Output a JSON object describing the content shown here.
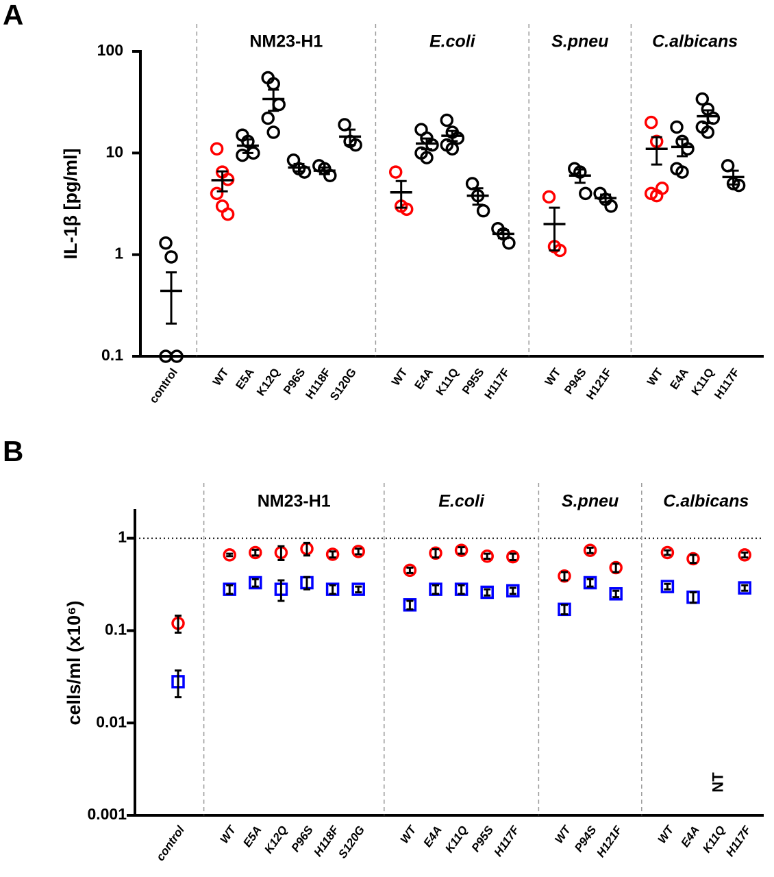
{
  "chart_data": [
    {
      "panel": "A",
      "type": "dot",
      "y_label": "IL-1β [pg/ml]",
      "log_scale": true,
      "ylim": [
        0.1,
        100
      ],
      "yticks": [
        0.1,
        1,
        10,
        100
      ],
      "point_color": "#000000",
      "highlight_color": "#ff0000",
      "groups": [
        {
          "categories": [
            {
              "label": "control",
              "values": [
                1.3,
                0.95,
                0.1,
                0.1
              ],
              "mean": 0.44,
              "error": 0.23
            }
          ]
        },
        {
          "name": "NM23-H1",
          "italic": false,
          "categories": [
            {
              "label": "WT",
              "highlighted": [
                11,
                6.5,
                5.5,
                4,
                3,
                2.5
              ],
              "mean": 5.4,
              "error": 1.2
            },
            {
              "label": "E5A",
              "values": [
                15,
                13,
                10,
                9.5
              ],
              "mean": 11.8,
              "error": 1.8
            },
            {
              "label": "K12Q",
              "values": [
                55,
                48,
                30,
                22,
                16
              ],
              "mean": 34,
              "error": 8
            },
            {
              "label": "P96S",
              "values": [
                8.5,
                7,
                6.5
              ],
              "mean": 7.2,
              "error": 0.6
            },
            {
              "label": "H118F",
              "values": [
                7.5,
                7,
                6
              ],
              "mean": 6.7,
              "error": 0.5
            },
            {
              "label": "S120G",
              "values": [
                19,
                13,
                12
              ],
              "mean": 14.5,
              "error": 2.5
            }
          ]
        },
        {
          "name": "E.coli",
          "italic": true,
          "categories": [
            {
              "label": "WT",
              "highlighted": [
                6.5,
                3,
                2.8
              ],
              "mean": 4.1,
              "error": 1.2
            },
            {
              "label": "E4A",
              "values": [
                17,
                14,
                12,
                10,
                9
              ],
              "mean": 12.4,
              "error": 1.5
            },
            {
              "label": "K11Q",
              "values": [
                21,
                16,
                14,
                12,
                11
              ],
              "mean": 14.8,
              "error": 1.7
            },
            {
              "label": "P95S",
              "values": [
                5,
                3.8,
                2.7
              ],
              "mean": 3.8,
              "error": 0.7
            },
            {
              "label": "H117F",
              "values": [
                1.8,
                1.6,
                1.3
              ],
              "mean": 1.6,
              "error": 0.15
            }
          ]
        },
        {
          "name": "S.pneu",
          "italic": true,
          "categories": [
            {
              "label": "WT",
              "highlighted": [
                3.7,
                1.2,
                1.1
              ],
              "mean": 2.0,
              "error": 0.9
            },
            {
              "label": "P94S",
              "values": [
                7,
                6.5,
                4
              ],
              "mean": 6,
              "error": 0.9
            },
            {
              "label": "H121F",
              "values": [
                4,
                3.5,
                3
              ],
              "mean": 3.6,
              "error": 0.3
            }
          ]
        },
        {
          "name": "C.albicans",
          "italic": true,
          "categories": [
            {
              "label": "WT",
              "highlighted": [
                20,
                13,
                4.5,
                4,
                3.8
              ],
              "mean": 11,
              "error": 3.3
            },
            {
              "label": "E4A",
              "values": [
                18,
                13,
                11,
                7,
                6.5
              ],
              "mean": 11.5,
              "error": 2.2
            },
            {
              "label": "K11Q",
              "values": [
                34,
                27,
                22,
                18,
                16
              ],
              "mean": 23,
              "error": 3.3
            },
            {
              "label": "H117F",
              "values": [
                7.5,
                5,
                4.8
              ],
              "mean": 5.8,
              "error": 0.9
            }
          ]
        }
      ]
    },
    {
      "panel": "B",
      "type": "dot-errorbar",
      "y_label": "cells/ml (x10⁶)",
      "log_scale": true,
      "ylim": [
        0.001,
        2
      ],
      "yticks": [
        0.001,
        0.01,
        0.1,
        1
      ],
      "reference_line": 1,
      "series": [
        {
          "color": "#ff0000",
          "marker": "circle"
        },
        {
          "color": "#0000ff",
          "marker": "square"
        }
      ],
      "error_color": "#000000",
      "category_italic": true,
      "groups": [
        {
          "categories": [
            {
              "label": "control",
              "values": [
                0.12,
                0.028
              ],
              "errors": [
                0.025,
                0.009
              ]
            }
          ]
        },
        {
          "name": "NM23-H1",
          "italic": false,
          "categories": [
            {
              "label": "WT",
              "values": [
                0.66,
                0.28
              ],
              "errors": [
                0.02,
                0.03
              ]
            },
            {
              "label": "E5A",
              "values": [
                0.7,
                0.33
              ],
              "errors": [
                0.05,
                0.03
              ]
            },
            {
              "label": "K12Q",
              "values": [
                0.7,
                0.28
              ],
              "errors": [
                0.12,
                0.07
              ]
            },
            {
              "label": "P96S",
              "values": [
                0.77,
                0.33
              ],
              "errors": [
                0.12,
                0.05
              ]
            },
            {
              "label": "H118F",
              "values": [
                0.67,
                0.28
              ],
              "errors": [
                0.05,
                0.03
              ]
            },
            {
              "label": "S120G",
              "values": [
                0.72,
                0.28
              ],
              "errors": [
                0.05,
                0.02
              ]
            }
          ]
        },
        {
          "name": "E.coli",
          "italic": true,
          "categories": [
            {
              "label": "WT",
              "values": [
                0.45,
                0.19
              ],
              "errors": [
                0.03,
                0.02
              ]
            },
            {
              "label": "E4A",
              "values": [
                0.69,
                0.28
              ],
              "errors": [
                0.07,
                0.03
              ]
            },
            {
              "label": "K11Q",
              "values": [
                0.74,
                0.28
              ],
              "errors": [
                0.06,
                0.03
              ]
            },
            {
              "label": "P95S",
              "values": [
                0.64,
                0.26
              ],
              "errors": [
                0.04,
                0.02
              ]
            },
            {
              "label": "H117F",
              "values": [
                0.63,
                0.27
              ],
              "errors": [
                0.05,
                0.02
              ]
            }
          ]
        },
        {
          "name": "S.pneu",
          "italic": true,
          "categories": [
            {
              "label": "WT",
              "values": [
                0.39,
                0.17
              ],
              "errors": [
                0.04,
                0.02
              ]
            },
            {
              "label": "P94S",
              "values": [
                0.74,
                0.33
              ],
              "errors": [
                0.05,
                0.03
              ]
            },
            {
              "label": "H121F",
              "values": [
                0.48,
                0.25
              ],
              "errors": [
                0.05,
                0.02
              ]
            }
          ]
        },
        {
          "name": "C.albicans",
          "italic": true,
          "categories": [
            {
              "label": "WT",
              "values": [
                0.7,
                0.3
              ],
              "errors": [
                0.04,
                0.02
              ]
            },
            {
              "label": "E4A",
              "values": [
                0.6,
                0.23
              ],
              "errors": [
                0.06,
                0.03
              ]
            },
            {
              "label": "K11Q",
              "values": [
                null,
                null
              ],
              "errors": [
                null,
                null
              ],
              "annotation": "NT"
            },
            {
              "label": "H117F",
              "values": [
                0.66,
                0.29
              ],
              "errors": [
                0.04,
                0.02
              ]
            }
          ]
        }
      ]
    }
  ]
}
